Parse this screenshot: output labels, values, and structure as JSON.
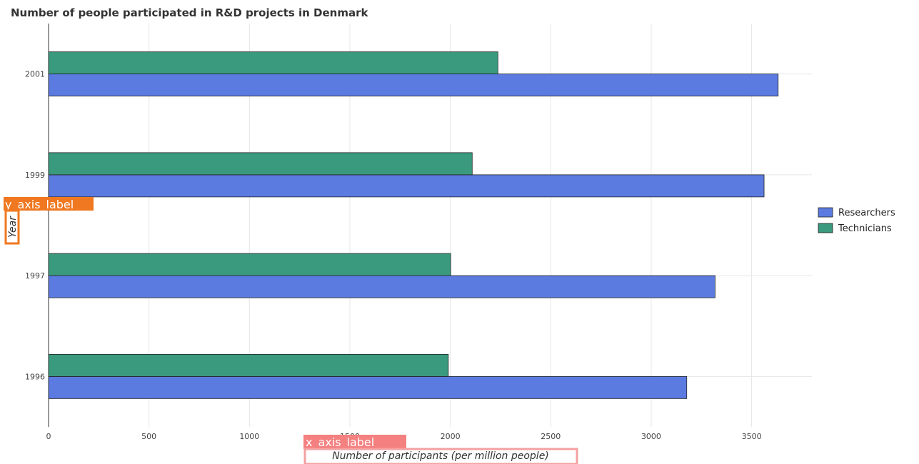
{
  "chart_data": {
    "type": "bar",
    "orientation": "horizontal",
    "title": "Number of people participated in R&D projects in Denmark",
    "xlabel": "Number of participants (per million people)",
    "ylabel": "Year",
    "x_axis_placeholder": "x_axis_label",
    "y_axis_placeholder": "y_axis_label",
    "categories": [
      "1996",
      "1997",
      "1999",
      "2001"
    ],
    "xlim": [
      0,
      3800
    ],
    "xticks": [
      0,
      500,
      1000,
      1500,
      2000,
      2500,
      3000,
      3500
    ],
    "xtick_labels": [
      "0",
      "500",
      "1000",
      "1500",
      "2000",
      "2500",
      "3000",
      "3500"
    ],
    "grid": true,
    "legend_position": "right",
    "series": [
      {
        "name": "Researchers",
        "color": "#5b7be0",
        "values": [
          3177,
          3318,
          3562,
          3632
        ]
      },
      {
        "name": "Technicians",
        "color": "#3a9a7d",
        "values": [
          1990,
          2002,
          2109,
          2237
        ]
      }
    ]
  }
}
